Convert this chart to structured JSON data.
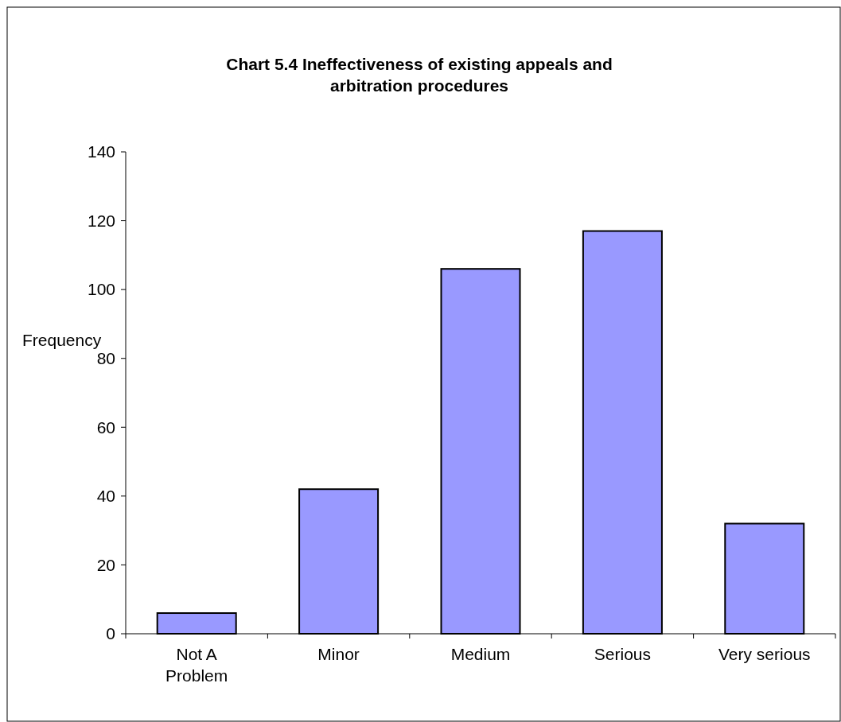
{
  "chart_data": {
    "type": "bar",
    "title": "Chart 5.4 Ineffectiveness of existing appeals and arbitration procedures",
    "ylabel": "Frequency",
    "categories": [
      "Not A Problem",
      "Minor",
      "Medium",
      "Serious",
      "Very serious"
    ],
    "values": [
      6,
      42,
      106,
      117,
      32
    ],
    "color": "#9999ff",
    "ylim": [
      0,
      140
    ],
    "yticks": [
      0,
      20,
      40,
      60,
      80,
      100,
      120,
      140
    ],
    "grid": false
  }
}
